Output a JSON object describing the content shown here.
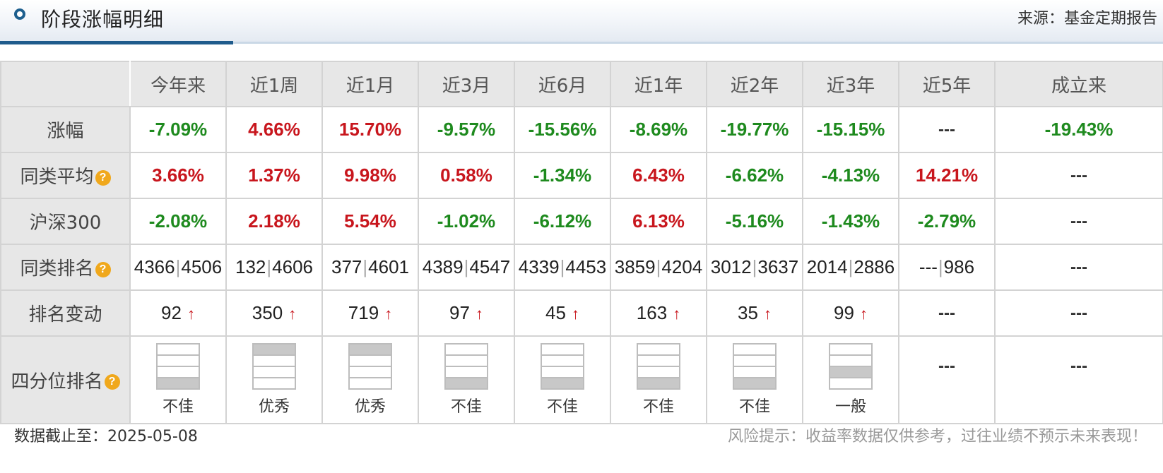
{
  "header": {
    "title": "阶段涨幅明细",
    "source": "来源：基金定期报告"
  },
  "table": {
    "columns": [
      "今年来",
      "近1周",
      "近1月",
      "近3月",
      "近6月",
      "近1年",
      "近2年",
      "近3年",
      "近5年",
      "成立来"
    ],
    "rows": {
      "return": {
        "label": "涨幅",
        "cells": [
          {
            "text": "-7.09%",
            "tone": "down"
          },
          {
            "text": "4.66%",
            "tone": "up"
          },
          {
            "text": "15.70%",
            "tone": "up"
          },
          {
            "text": "-9.57%",
            "tone": "down"
          },
          {
            "text": "-15.56%",
            "tone": "down"
          },
          {
            "text": "-8.69%",
            "tone": "down"
          },
          {
            "text": "-19.77%",
            "tone": "down"
          },
          {
            "text": "-15.15%",
            "tone": "down"
          },
          {
            "text": "---",
            "tone": "dash"
          },
          {
            "text": "-19.43%",
            "tone": "down"
          }
        ]
      },
      "peer_avg": {
        "label": "同类平均",
        "cells": [
          {
            "text": "3.66%",
            "tone": "up"
          },
          {
            "text": "1.37%",
            "tone": "up"
          },
          {
            "text": "9.98%",
            "tone": "up"
          },
          {
            "text": "0.58%",
            "tone": "up"
          },
          {
            "text": "-1.34%",
            "tone": "down"
          },
          {
            "text": "6.43%",
            "tone": "up"
          },
          {
            "text": "-6.62%",
            "tone": "down"
          },
          {
            "text": "-4.13%",
            "tone": "down"
          },
          {
            "text": "14.21%",
            "tone": "up"
          },
          {
            "text": "---",
            "tone": "dash"
          }
        ]
      },
      "csi300": {
        "label": "沪深300",
        "cells": [
          {
            "text": "-2.08%",
            "tone": "down"
          },
          {
            "text": "2.18%",
            "tone": "up"
          },
          {
            "text": "5.54%",
            "tone": "up"
          },
          {
            "text": "-1.02%",
            "tone": "down"
          },
          {
            "text": "-6.12%",
            "tone": "down"
          },
          {
            "text": "6.13%",
            "tone": "up"
          },
          {
            "text": "-5.16%",
            "tone": "down"
          },
          {
            "text": "-1.43%",
            "tone": "down"
          },
          {
            "text": "-2.79%",
            "tone": "down"
          },
          {
            "text": "---",
            "tone": "dash"
          }
        ]
      },
      "peer_rank": {
        "label": "同类排名",
        "cells": [
          {
            "rank": "4366",
            "total": "4506"
          },
          {
            "rank": "132",
            "total": "4606"
          },
          {
            "rank": "377",
            "total": "4601"
          },
          {
            "rank": "4389",
            "total": "4547"
          },
          {
            "rank": "4339",
            "total": "4453"
          },
          {
            "rank": "3859",
            "total": "4204"
          },
          {
            "rank": "3012",
            "total": "3637"
          },
          {
            "rank": "2014",
            "total": "2886"
          },
          {
            "rank": "---",
            "total": "986"
          },
          {
            "dash": "---"
          }
        ]
      },
      "rank_change": {
        "label": "排名变动",
        "arrow": "↑",
        "cells": [
          {
            "value": "92",
            "dir": "up"
          },
          {
            "value": "350",
            "dir": "up"
          },
          {
            "value": "719",
            "dir": "up"
          },
          {
            "value": "97",
            "dir": "up"
          },
          {
            "value": "45",
            "dir": "up"
          },
          {
            "value": "163",
            "dir": "up"
          },
          {
            "value": "35",
            "dir": "up"
          },
          {
            "value": "99",
            "dir": "up"
          },
          {
            "dash": "---"
          },
          {
            "dash": "---"
          }
        ]
      },
      "quartile": {
        "label": "四分位排名",
        "cells": [
          {
            "quartile": 4,
            "label": "不佳"
          },
          {
            "quartile": 1,
            "label": "优秀"
          },
          {
            "quartile": 1,
            "label": "优秀"
          },
          {
            "quartile": 4,
            "label": "不佳"
          },
          {
            "quartile": 4,
            "label": "不佳"
          },
          {
            "quartile": 4,
            "label": "不佳"
          },
          {
            "quartile": 4,
            "label": "不佳"
          },
          {
            "quartile": 3,
            "label": "一般"
          },
          {
            "dash": "---"
          },
          {
            "dash": "---"
          }
        ]
      }
    }
  },
  "footer": {
    "date_label": "数据截止至：2025-05-08",
    "risk_note": "风险提示：收益率数据仅供参考，过往业绩不预示未来表现！"
  },
  "colors": {
    "up": "#c8161d",
    "down": "#1e8a1e",
    "accent": "#1f5b8c",
    "help_icon": "#f0a81c"
  }
}
